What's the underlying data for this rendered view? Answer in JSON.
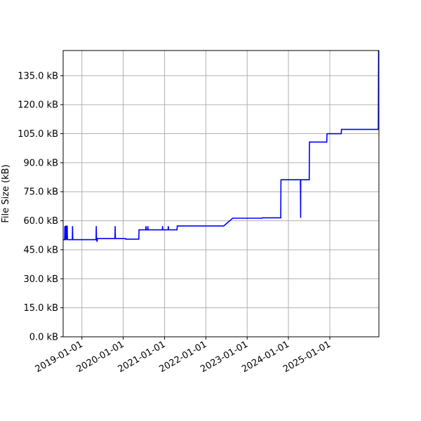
{
  "chart_data": {
    "type": "line",
    "title": "",
    "xlabel": "",
    "ylabel": "File Size (kB)",
    "grid": true,
    "legend": "none",
    "colors": {
      "line": "#0000ff",
      "grid": "#b0b0b0",
      "axes": "#000000"
    },
    "xlim": [
      "2018-07-19",
      "2026-03-11"
    ],
    "ylim": [
      0,
      148
    ],
    "x_ticks": [
      {
        "date": "2019-01-01",
        "label": "2019-01-01"
      },
      {
        "date": "2020-01-01",
        "label": "2020-01-01"
      },
      {
        "date": "2021-01-01",
        "label": "2021-01-01"
      },
      {
        "date": "2022-01-01",
        "label": "2022-01-01"
      },
      {
        "date": "2023-01-01",
        "label": "2023-01-01"
      },
      {
        "date": "2024-01-01",
        "label": "2024-01-01"
      },
      {
        "date": "2025-01-01",
        "label": "2025-01-01"
      }
    ],
    "y_ticks": [
      {
        "value": 0,
        "label": "0.0 kB"
      },
      {
        "value": 15,
        "label": "15.0 kB"
      },
      {
        "value": 30,
        "label": "30.0 kB"
      },
      {
        "value": 45,
        "label": "45.0 kB"
      },
      {
        "value": 60,
        "label": "60.0 kB"
      },
      {
        "value": 75,
        "label": "75.0 kB"
      },
      {
        "value": 90,
        "label": "90.0 kB"
      },
      {
        "value": 105,
        "label": "105.0 kB"
      },
      {
        "value": 120,
        "label": "120.0 kB"
      },
      {
        "value": 135,
        "label": "135.0 kB"
      }
    ],
    "series": [
      {
        "values": [
          [
            "2018-07-19",
            50.2
          ],
          [
            "2018-08-01",
            50.2
          ],
          [
            "2018-08-03",
            57.2
          ],
          [
            "2018-08-06",
            50.2
          ],
          [
            "2018-08-10",
            50.2
          ],
          [
            "2018-08-12",
            57.2
          ],
          [
            "2018-08-17",
            57.2
          ],
          [
            "2018-08-19",
            50.2
          ],
          [
            "2018-08-21",
            57.2
          ],
          [
            "2018-08-24",
            57.2
          ],
          [
            "2018-08-26",
            50.2
          ],
          [
            "2018-10-08",
            50.2
          ],
          [
            "2018-10-10",
            57.2
          ],
          [
            "2018-10-12",
            50.2
          ],
          [
            "2019-05-06",
            50.2
          ],
          [
            "2019-05-08",
            57.2
          ],
          [
            "2019-05-10",
            50.2
          ],
          [
            "2019-05-15",
            49.2
          ],
          [
            "2019-05-18",
            50.8
          ],
          [
            "2019-10-20",
            50.8
          ],
          [
            "2019-10-22",
            57.2
          ],
          [
            "2019-10-24",
            50.8
          ],
          [
            "2020-01-20",
            50.8
          ],
          [
            "2020-01-22",
            50.5
          ],
          [
            "2020-05-18",
            50.5
          ],
          [
            "2020-05-20",
            55.3
          ],
          [
            "2020-07-18",
            55.3
          ],
          [
            "2020-07-20",
            57.2
          ],
          [
            "2020-07-22",
            55.3
          ],
          [
            "2020-08-04",
            55.3
          ],
          [
            "2020-08-06",
            57.2
          ],
          [
            "2020-08-08",
            55.3
          ],
          [
            "2020-12-12",
            55.3
          ],
          [
            "2020-12-14",
            57.2
          ],
          [
            "2020-12-16",
            55.3
          ],
          [
            "2021-02-01",
            55.3
          ],
          [
            "2021-02-03",
            57.2
          ],
          [
            "2021-02-05",
            55.3
          ],
          [
            "2021-04-21",
            55.3
          ],
          [
            "2021-04-23",
            57.3
          ],
          [
            "2022-06-08",
            57.3
          ],
          [
            "2022-08-26",
            61.3
          ],
          [
            "2023-05-14",
            61.3
          ],
          [
            "2023-05-16",
            61.5
          ],
          [
            "2023-10-25",
            61.5
          ],
          [
            "2023-10-27",
            81.2
          ],
          [
            "2024-04-16",
            81.2
          ],
          [
            "2024-04-18",
            61.5
          ],
          [
            "2024-04-19",
            81.2
          ],
          [
            "2024-07-03",
            81.2
          ],
          [
            "2024-07-05",
            100.7
          ],
          [
            "2024-12-05",
            100.7
          ],
          [
            "2024-12-07",
            105.0
          ],
          [
            "2025-04-12",
            105.0
          ],
          [
            "2025-04-14",
            107.2
          ],
          [
            "2026-03-06",
            107.2
          ],
          [
            "2026-03-08",
            148.0
          ]
        ]
      }
    ]
  }
}
